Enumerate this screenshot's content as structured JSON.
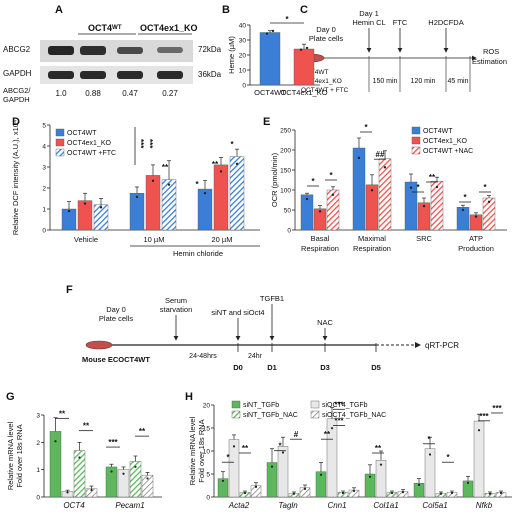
{
  "panels": {
    "A": {
      "letter": "A",
      "group_wt": "OCT4ᵂᵀ",
      "group_ko": "OCT4ex1_KO",
      "rows": [
        "ABCG2",
        "GAPDH"
      ],
      "sizes": [
        "72kDa",
        "36kDa"
      ],
      "ratio_label_1": "ABCG2/",
      "ratio_label_2": "GAPDH",
      "ratios": [
        "1.0",
        "0.88",
        "0.47",
        "0.27"
      ],
      "colors": {
        "band": "#2a2a2a",
        "blot_bg": "#d8d8d8"
      }
    },
    "C": {
      "letter": "C",
      "day0": "Day 0",
      "plate": "Plate cells",
      "day1": "Day 1",
      "hemin": "Hemin CL",
      "ftc": "FTC",
      "h2dcfda": "H2DCFDA",
      "ros1": "ROS",
      "ros2": "Estimation",
      "groups": [
        "OCT4WT",
        "OCT4ex1_KO",
        "OCT4WT + FTC"
      ],
      "times": [
        "150 min",
        "120 min",
        "45 min"
      ]
    },
    "F": {
      "letter": "F",
      "day0": "Day 0",
      "plate": "Plate cells",
      "serum1": "Serum",
      "serum2": "starvation",
      "sint": "siNT and siOct4",
      "tgfb": "TGFB1",
      "nac": "NAC",
      "span1": "24-48hrs",
      "span2": "24hr",
      "days": [
        "D0",
        "D1",
        "D3",
        "D5"
      ],
      "mouse": "Mouse ECOCT4WT",
      "qrt": "qRT-PCR"
    }
  },
  "chart_data": [
    {
      "id": "B",
      "type": "bar",
      "letter": "B",
      "ylabel": "Heme (µM)",
      "ylim": [
        0,
        40
      ],
      "yticks": [
        0,
        10,
        20,
        30,
        40
      ],
      "categories": [
        "OCT4WT",
        "OCT4ex1_KO"
      ],
      "values": [
        35,
        24
      ],
      "errors": [
        1.2,
        3.2
      ],
      "colors": [
        "#3a7fd5",
        "#ef5350"
      ],
      "annotations": [
        {
          "text": "*"
        }
      ]
    },
    {
      "id": "D",
      "type": "bar",
      "letter": "D",
      "ylabel": "Relative DCF intensity (A.U.), x10⁴",
      "ylim": [
        0,
        5
      ],
      "yticks": [
        0,
        1,
        2,
        3,
        4,
        5
      ],
      "categories": [
        "Vehicle",
        "10 µM",
        "20 µM"
      ],
      "xgroup_label": "Hemin chloride",
      "series": [
        {
          "name": "OCT4WT",
          "values": [
            1.0,
            1.75,
            1.95
          ],
          "errors": [
            0.35,
            0.3,
            0.4
          ],
          "color": "#3a7fd5",
          "hatch": false
        },
        {
          "name": "OCT4ex1_KO",
          "values": [
            1.4,
            2.6,
            3.1
          ],
          "errors": [
            0.35,
            0.5,
            0.35
          ],
          "color": "#ef5350",
          "hatch": false
        },
        {
          "name": "OCT4WT +FTC",
          "values": [
            1.2,
            2.4,
            3.5
          ],
          "errors": [
            0.3,
            0.9,
            0.35
          ],
          "color": "#3a7fd5",
          "hatch": true
        }
      ],
      "annotations": [
        "***",
        "***",
        "**",
        "*",
        "**",
        "*"
      ]
    },
    {
      "id": "E",
      "type": "bar",
      "letter": "E",
      "ylabel": "OCR (pmol/min)",
      "ylim": [
        0,
        250
      ],
      "yticks": [
        0,
        50,
        100,
        150,
        200,
        250
      ],
      "categories": [
        "Basal Respiration",
        "Maximal Respiration",
        "SRC",
        "ATP Production"
      ],
      "category_lines": [
        [
          "Basal",
          "Respiration"
        ],
        [
          "Maximal",
          "Respiration"
        ],
        [
          "SRC",
          ""
        ],
        [
          "ATP",
          "Production"
        ]
      ],
      "series": [
        {
          "name": "OCT4WT",
          "values": [
            88,
            205,
            120,
            57
          ],
          "errors": [
            4,
            25,
            20,
            5
          ],
          "color": "#3a7fd5",
          "hatch": false
        },
        {
          "name": "OCT4ex1_KO",
          "values": [
            53,
            113,
            68,
            38
          ],
          "errors": [
            8,
            25,
            12,
            5
          ],
          "color": "#ef5350",
          "hatch": false
        },
        {
          "name": "OCT4WT +NAC",
          "values": [
            100,
            178,
            122,
            80
          ],
          "errors": [
            8,
            20,
            10,
            6
          ],
          "color": "#ef5350",
          "hatch": true
        }
      ],
      "annotations": [
        "*",
        "*",
        "*",
        "##",
        "*",
        "**",
        "*",
        "*"
      ]
    },
    {
      "id": "G",
      "type": "bar",
      "letter": "G",
      "ylabel": "Relative mRNA level Fold over 18s RNA",
      "ylabel_lines": [
        "Relative mRNA level",
        "Fold over 18s RNA"
      ],
      "ylim": [
        0,
        3
      ],
      "yticks": [
        0,
        1,
        2,
        3
      ],
      "categories": [
        "OCT4",
        "Pecam1"
      ],
      "series": [
        {
          "name": "siNT_TGFb",
          "values": [
            2.4,
            1.1
          ],
          "errors": [
            0.5,
            0.1
          ],
          "color": "#5cb85c",
          "pattern": "solid"
        },
        {
          "name": "siOCT4_TGFb",
          "values": [
            0.2,
            1.0
          ],
          "errors": [
            0.05,
            0.1
          ],
          "color": "#e8e8e8",
          "pattern": "solid"
        },
        {
          "name": "siNT_TGFb_NAC",
          "values": [
            1.7,
            1.3
          ],
          "errors": [
            0.3,
            0.2
          ],
          "color": "#5cb85c",
          "pattern": "hatch"
        },
        {
          "name": "siOCT4_TGFb_NAC",
          "values": [
            0.3,
            0.8
          ],
          "errors": [
            0.1,
            0.1
          ],
          "color": "#e8e8e8",
          "pattern": "hatch"
        }
      ],
      "annotations": [
        "**",
        "**",
        "***",
        "**"
      ]
    },
    {
      "id": "H",
      "type": "bar",
      "letter": "H",
      "ylabel": "Relative mRNA level Fold over 18s RNA",
      "ylabel_lines": [
        "Relative mRNA level",
        "Fold over 18s RNA"
      ],
      "ylim": [
        0,
        20
      ],
      "yticks": [
        0,
        5,
        10,
        15,
        20
      ],
      "categories": [
        "Acta2",
        "Tagln",
        "Cnn1",
        "Col1a1",
        "Col5a1",
        "Nfkb"
      ],
      "series": [
        {
          "name": "siNT_TGFb",
          "values": [
            4,
            7.5,
            5.5,
            5,
            3,
            3.5
          ],
          "errors": [
            1.5,
            3,
            2,
            2,
            1,
            1
          ],
          "color": "#5cb85c",
          "pattern": "solid"
        },
        {
          "name": "siOCT4_TGFb",
          "values": [
            12.5,
            11,
            17,
            8,
            10.5,
            16.5
          ],
          "errors": [
            1,
            2,
            2.5,
            2,
            2.5,
            1.5
          ],
          "color": "#e8e8e8",
          "pattern": "solid"
        },
        {
          "name": "siNT_TGFb_NAC",
          "values": [
            1,
            0.8,
            1,
            1,
            0.8,
            0.8
          ],
          "errors": [
            0.3,
            0.3,
            0.3,
            0.3,
            0.3,
            0.3
          ],
          "color": "#5cb85c",
          "pattern": "hatch"
        },
        {
          "name": "siOCT4_TGFb_NAC",
          "values": [
            2.5,
            2,
            1.5,
            1.2,
            1,
            1
          ],
          "errors": [
            0.6,
            0.6,
            0.5,
            0.4,
            0.3,
            0.3
          ],
          "color": "#e8e8e8",
          "pattern": "hatch"
        }
      ],
      "annotations": [
        "*",
        "**",
        "*",
        "#",
        "**",
        "***",
        "***",
        "**",
        "*",
        "*",
        "***",
        "***"
      ]
    }
  ]
}
